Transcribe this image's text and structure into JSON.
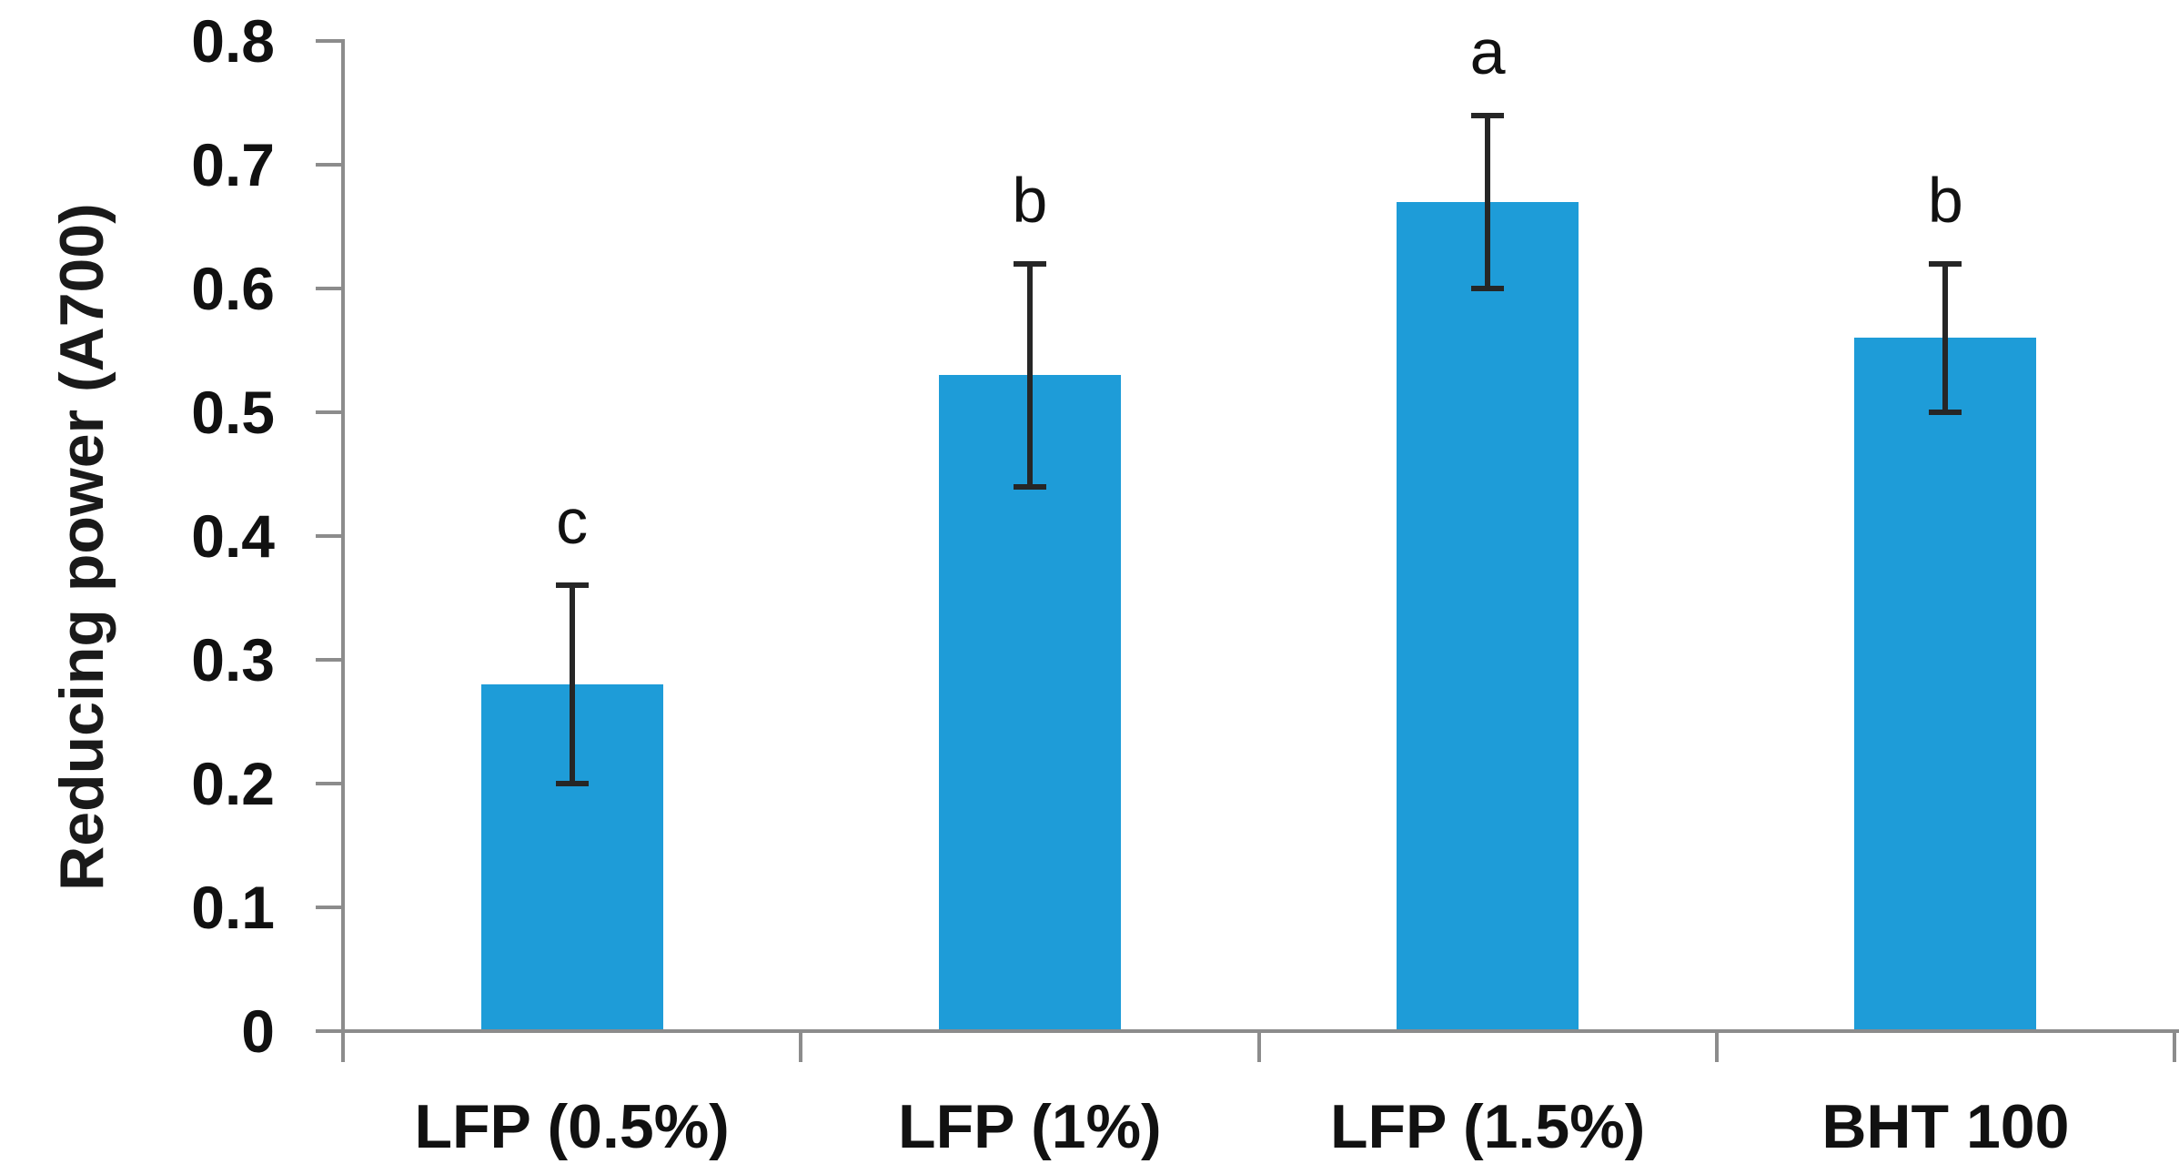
{
  "chart_data": {
    "type": "bar",
    "title": "",
    "xlabel": "",
    "ylabel": "Reducing power (A700)",
    "ylim": [
      0,
      0.8
    ],
    "ytick_values": [
      0,
      0.1,
      0.2,
      0.3,
      0.4,
      0.5,
      0.6,
      0.7,
      0.8
    ],
    "ytick_labels": [
      "0",
      "0.1",
      "0.2",
      "0.3",
      "0.4",
      "0.5",
      "0.6",
      "0.7",
      "0.8"
    ],
    "categories": [
      "LFP (0.5%)",
      "LFP (1%)",
      "LFP (1.5%)",
      "BHT 100"
    ],
    "values": [
      0.28,
      0.53,
      0.67,
      0.56
    ],
    "errors": [
      0.08,
      0.09,
      0.07,
      0.06
    ],
    "error_tops": [
      0.36,
      0.62,
      0.74,
      0.62
    ],
    "error_bottoms": [
      0.2,
      0.44,
      0.6,
      0.5
    ],
    "significance_letters": [
      "c",
      "b",
      "a",
      "b"
    ],
    "grid": false,
    "legend": false,
    "colors": {
      "bar": "#1E9CD8",
      "error_bar": "#262626",
      "axis": "#8C8C8C",
      "text": "#111111"
    }
  }
}
